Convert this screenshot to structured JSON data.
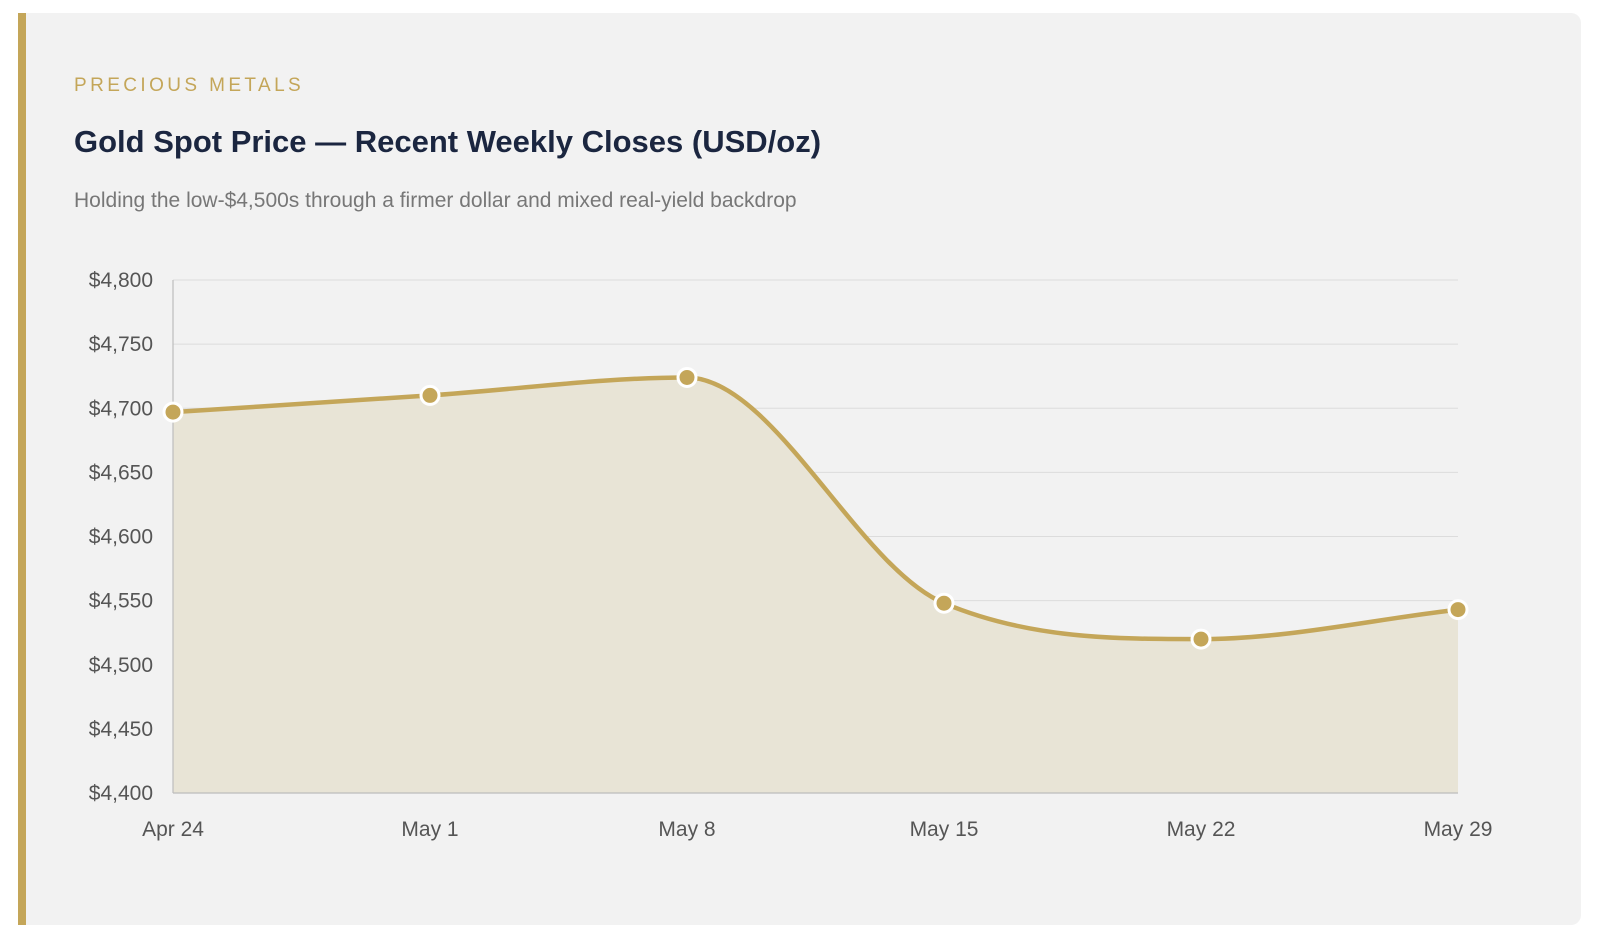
{
  "colors": {
    "accent": "#c4a659",
    "title": "#1b2640",
    "area_fill": "#e8e4d6",
    "grid": "#dcdcdc",
    "axis": "#bdbdbd",
    "card_bg": "#f2f2f2"
  },
  "header": {
    "eyebrow": "PRECIOUS METALS",
    "title": "Gold Spot Price — Recent Weekly Closes (USD/oz)",
    "subtitle": "Holding the low-$4,500s through a firmer dollar and mixed real-yield backdrop"
  },
  "chart_data": {
    "type": "area",
    "x": [
      "Apr 24",
      "May 1",
      "May 8",
      "May 15",
      "May 22",
      "May 29"
    ],
    "series": [
      {
        "values": [
          4697,
          4710,
          4724,
          4548,
          4520,
          4543
        ]
      }
    ],
    "ylim": [
      4400,
      4800
    ],
    "y_ticks": [
      4400,
      4450,
      4500,
      4550,
      4600,
      4650,
      4700,
      4750,
      4800
    ],
    "y_tick_labels": [
      "$4,400",
      "$4,450",
      "$4,500",
      "$4,550",
      "$4,600",
      "$4,650",
      "$4,700",
      "$4,750",
      "$4,800"
    ],
    "title": "Gold Spot Price — Recent Weekly Closes (USD/oz)",
    "xlabel": "",
    "ylabel": "",
    "grid": true,
    "legend": "none",
    "curve": "smooth"
  }
}
